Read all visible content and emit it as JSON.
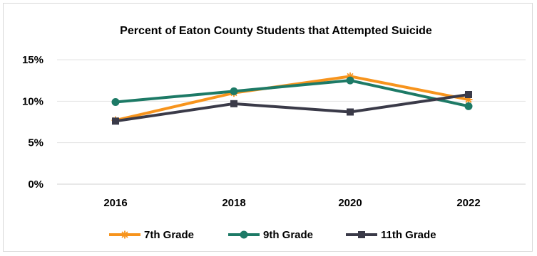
{
  "chart_data": {
    "type": "line",
    "title": "Percent of Eaton County Students that Attempted Suicide",
    "xlabel": "",
    "ylabel": "",
    "categories": [
      "2016",
      "2018",
      "2020",
      "2022"
    ],
    "ylim": [
      0,
      15
    ],
    "y_ticks": [
      0,
      5,
      10,
      15
    ],
    "y_tick_labels": [
      "0%",
      "5%",
      "10%",
      "15%"
    ],
    "grid": "horizontal",
    "legend_position": "bottom",
    "series": [
      {
        "name": "7th Grade",
        "values": [
          7.7,
          11.0,
          13.0,
          10.2
        ],
        "color": "#f7941d",
        "marker": "asterisk"
      },
      {
        "name": "9th Grade",
        "values": [
          9.9,
          11.2,
          12.5,
          9.4
        ],
        "color": "#1d7a66",
        "marker": "circle"
      },
      {
        "name": "11th Grade",
        "values": [
          7.6,
          9.7,
          8.7,
          10.8
        ],
        "color": "#3a3a48",
        "marker": "square"
      }
    ]
  }
}
